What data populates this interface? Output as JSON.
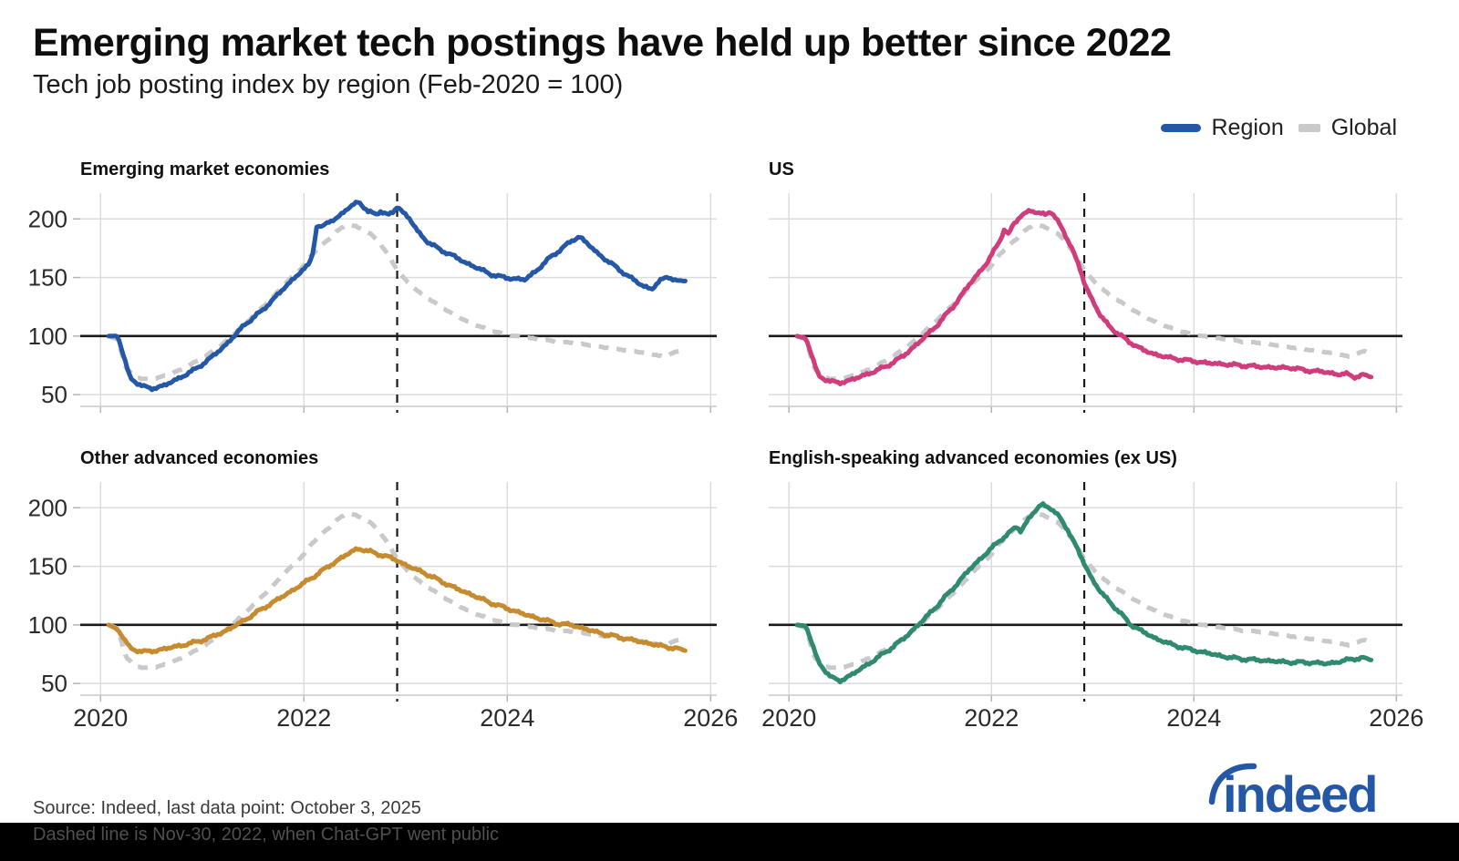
{
  "title": "Emerging market tech postings have held up better since 2022",
  "subtitle": "Tech job posting index by region (Feb-2020 = 100)",
  "legend": {
    "region_label": "Region",
    "global_label": "Global",
    "region_color": "#2557a7",
    "global_color": "#c9c9c9"
  },
  "source_line": "Source: Indeed, last data point: October 3, 2025",
  "footnote_line": "Dashed line is Nov-30, 2022, when Chat-GPT went public",
  "logo_text": "indeed",
  "logo_color": "#2557a7",
  "chart_data": {
    "type": "line",
    "title": "Tech job posting index by region (Feb-2020 = 100)",
    "ylim": [
      40,
      222
    ],
    "yticks": [
      50,
      100,
      150,
      200
    ],
    "xlim": [
      2019.8,
      2026.06
    ],
    "xticks": [
      2020,
      2022,
      2024,
      2026
    ],
    "baseline": 100,
    "event_line_x": 2022.917,
    "grid_color": "#dcdcdc",
    "baseline_color": "#1a1a1a",
    "global": {
      "name": "Global",
      "color": "#c9c9c9",
      "x": [
        2020.08,
        2020.17,
        2020.25,
        2020.33,
        2020.42,
        2020.54,
        2020.67,
        2020.83,
        2021.0,
        2021.17,
        2021.33,
        2021.5,
        2021.67,
        2021.83,
        2022.0,
        2022.08,
        2022.17,
        2022.25,
        2022.33,
        2022.42,
        2022.5,
        2022.58,
        2022.67,
        2022.75,
        2022.83,
        2022.92,
        2023.0,
        2023.08,
        2023.17,
        2023.33,
        2023.5,
        2023.67,
        2023.83,
        2024.0,
        2024.17,
        2024.33,
        2024.5,
        2024.67,
        2024.83,
        2025.0,
        2025.17,
        2025.33,
        2025.46,
        2025.54,
        2025.63,
        2025.69,
        2025.75
      ],
      "y": [
        100,
        97,
        72,
        66,
        63,
        64,
        67,
        73,
        81,
        91,
        103,
        117,
        131,
        146,
        160,
        170,
        177,
        183,
        190,
        195,
        194,
        191,
        186,
        179,
        169,
        156,
        148,
        141,
        135,
        126,
        117,
        110,
        105,
        101,
        99,
        97,
        95,
        94,
        92,
        90,
        88,
        86,
        84,
        82,
        86,
        87,
        84
      ]
    },
    "panels": [
      {
        "key": "emerging",
        "title": "Emerging market economies",
        "color": "#2557a7",
        "x": [
          2020.08,
          2020.17,
          2020.29,
          2020.42,
          2020.5,
          2020.63,
          2020.75,
          2020.92,
          2021.08,
          2021.25,
          2021.42,
          2021.58,
          2021.75,
          2021.92,
          2022.04,
          2022.08,
          2022.13,
          2022.17,
          2022.25,
          2022.33,
          2022.42,
          2022.5,
          2022.54,
          2022.58,
          2022.63,
          2022.71,
          2022.75,
          2022.83,
          2022.88,
          2022.92,
          2022.96,
          2023.04,
          2023.13,
          2023.21,
          2023.33,
          2023.46,
          2023.58,
          2023.71,
          2023.83,
          2023.96,
          2024.08,
          2024.17,
          2024.29,
          2024.42,
          2024.54,
          2024.63,
          2024.71,
          2024.79,
          2024.88,
          2024.96,
          2025.08,
          2025.21,
          2025.33,
          2025.42,
          2025.5,
          2025.58,
          2025.67,
          2025.75
        ],
        "y": [
          100,
          100,
          64,
          57,
          55,
          58,
          63,
          71,
          81,
          94,
          110,
          121,
          136,
          151,
          160,
          168,
          196,
          192,
          198,
          201,
          208,
          213,
          215,
          211,
          206,
          204,
          207,
          203,
          206,
          211,
          207,
          200,
          188,
          181,
          174,
          169,
          163,
          158,
          153,
          150,
          149,
          148,
          156,
          167,
          175,
          181,
          185,
          179,
          171,
          166,
          158,
          150,
          143,
          140,
          147,
          151,
          147,
          147
        ]
      },
      {
        "key": "us",
        "title": "US",
        "color": "#cf3d7c",
        "x": [
          2020.08,
          2020.17,
          2020.29,
          2020.42,
          2020.5,
          2020.63,
          2020.79,
          2020.96,
          2021.13,
          2021.29,
          2021.46,
          2021.63,
          2021.79,
          2021.96,
          2022.08,
          2022.13,
          2022.17,
          2022.21,
          2022.29,
          2022.38,
          2022.46,
          2022.54,
          2022.58,
          2022.63,
          2022.71,
          2022.79,
          2022.88,
          2022.92,
          2023.0,
          2023.08,
          2023.17,
          2023.25,
          2023.33,
          2023.42,
          2023.5,
          2023.63,
          2023.79,
          2023.96,
          2024.13,
          2024.29,
          2024.46,
          2024.63,
          2024.79,
          2024.96,
          2025.08,
          2025.21,
          2025.33,
          2025.42,
          2025.5,
          2025.58,
          2025.67,
          2025.75
        ],
        "y": [
          100,
          98,
          66,
          61,
          60,
          63,
          68,
          74,
          83,
          95,
          109,
          126,
          145,
          163,
          181,
          192,
          186,
          194,
          203,
          207,
          205,
          204,
          207,
          201,
          190,
          176,
          156,
          145,
          130,
          117,
          108,
          102,
          97,
          92,
          88,
          84,
          81,
          79,
          77,
          76,
          75,
          74,
          73,
          73,
          71,
          70,
          69,
          67,
          68,
          65,
          67,
          65
        ]
      },
      {
        "key": "other-advanced",
        "title": "Other advanced economies",
        "color": "#c78b2f",
        "x": [
          2020.08,
          2020.17,
          2020.29,
          2020.42,
          2020.54,
          2020.71,
          2020.88,
          2021.04,
          2021.21,
          2021.38,
          2021.54,
          2021.71,
          2021.88,
          2022.04,
          2022.21,
          2022.33,
          2022.42,
          2022.5,
          2022.54,
          2022.63,
          2022.75,
          2022.83,
          2022.92,
          2023.0,
          2023.17,
          2023.33,
          2023.5,
          2023.67,
          2023.83,
          2024.0,
          2024.17,
          2024.33,
          2024.5,
          2024.63,
          2024.79,
          2024.96,
          2025.13,
          2025.29,
          2025.46,
          2025.58,
          2025.67,
          2025.75
        ],
        "y": [
          100,
          96,
          80,
          77,
          78,
          81,
          84,
          88,
          94,
          102,
          111,
          120,
          129,
          138,
          148,
          155,
          160,
          164,
          165,
          163,
          160,
          158,
          155,
          151,
          145,
          138,
          131,
          125,
          119,
          114,
          109,
          105,
          101,
          100,
          96,
          92,
          89,
          86,
          83,
          81,
          80,
          78
        ]
      },
      {
        "key": "english-speaking",
        "title": "English-speaking advanced economies (ex US)",
        "color": "#2f8a70",
        "x": [
          2020.08,
          2020.17,
          2020.29,
          2020.42,
          2020.5,
          2020.63,
          2020.79,
          2020.96,
          2021.13,
          2021.29,
          2021.46,
          2021.63,
          2021.79,
          2021.96,
          2022.08,
          2022.17,
          2022.25,
          2022.29,
          2022.38,
          2022.46,
          2022.5,
          2022.58,
          2022.67,
          2022.75,
          2022.83,
          2022.92,
          2023.0,
          2023.08,
          2023.25,
          2023.38,
          2023.5,
          2023.63,
          2023.79,
          2023.96,
          2024.13,
          2024.29,
          2024.46,
          2024.63,
          2024.79,
          2024.96,
          2025.13,
          2025.29,
          2025.42,
          2025.5,
          2025.58,
          2025.67,
          2025.75
        ],
        "y": [
          100,
          99,
          68,
          55,
          52,
          58,
          67,
          77,
          88,
          101,
          116,
          132,
          148,
          162,
          172,
          178,
          184,
          180,
          192,
          200,
          203,
          200,
          192,
          182,
          168,
          152,
          138,
          128,
          112,
          100,
          94,
          88,
          83,
          79,
          76,
          73,
          71,
          70,
          69,
          68,
          68,
          67,
          68,
          70,
          71,
          72,
          70
        ]
      }
    ]
  }
}
